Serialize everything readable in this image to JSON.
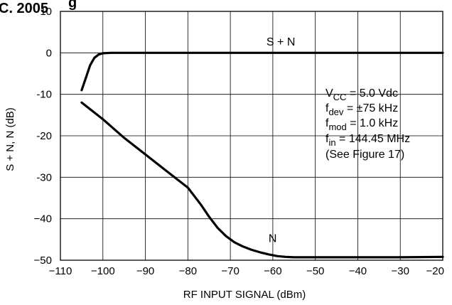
{
  "clipped_header": {
    "left": "C. 2005",
    "right": "g"
  },
  "chart_data": {
    "type": "line",
    "xlabel": "RF INPUT SIGNAL (dBm)",
    "ylabel": "S + N, N (dB)",
    "xlim": [
      -110,
      -20
    ],
    "ylim": [
      -50,
      10
    ],
    "x_ticks": [
      -110,
      -100,
      -90,
      -80,
      -70,
      -60,
      -50,
      -40,
      -30,
      -20
    ],
    "y_ticks": [
      10,
      0,
      -10,
      -20,
      -30,
      -40,
      -50
    ],
    "x_tick_labels": [
      "−110",
      "−100",
      "−90",
      "−80",
      "−70",
      "−60",
      "−50",
      "−40",
      "−30",
      "−20"
    ],
    "y_tick_labels": [
      "10",
      "0",
      "-10",
      "-20",
      "-30",
      "−40",
      "−50"
    ],
    "grid": true,
    "series": [
      {
        "name": "S + N",
        "x": [
          -105,
          -104,
          -103,
          -102,
          -101,
          -100,
          -98,
          -95,
          -90,
          -80,
          -70,
          -60,
          -50,
          -40,
          -30,
          -20
        ],
        "y": [
          -9,
          -6,
          -3,
          -1.2,
          -0.4,
          -0.1,
          0,
          0,
          0,
          0,
          0,
          0,
          0,
          0,
          0,
          0
        ]
      },
      {
        "name": "N",
        "x": [
          -105,
          -100,
          -95,
          -90,
          -85,
          -80,
          -77,
          -75,
          -73,
          -71,
          -69,
          -67,
          -65,
          -63,
          -61,
          -59,
          -57,
          -55,
          -50,
          -40,
          -30,
          -20
        ],
        "y": [
          -12,
          -16,
          -20.5,
          -24.5,
          -28.5,
          -32.5,
          -36.5,
          -39.5,
          -42.2,
          -44.2,
          -45.7,
          -46.7,
          -47.5,
          -48.1,
          -48.6,
          -49,
          -49.2,
          -49.3,
          -49.3,
          -49.3,
          -49.3,
          -49.2
        ]
      }
    ],
    "curve_labels": {
      "s_plus_n": "S + N",
      "n": "N"
    },
    "annotation": {
      "vcc_main": "V",
      "vcc_sub": "CC",
      "vcc_rest": " = 5.0 Vdc",
      "fdev_main": "f",
      "fdev_sub": "dev",
      "fdev_rest": " = ±75 kHz",
      "fmod_main": "f",
      "fmod_sub": "mod",
      "fmod_rest": " = 1.0 kHz",
      "fin_main": "f",
      "fin_sub": "in",
      "fin_rest": " = 144.45 MHz",
      "see": "(See Figure 17)"
    }
  }
}
